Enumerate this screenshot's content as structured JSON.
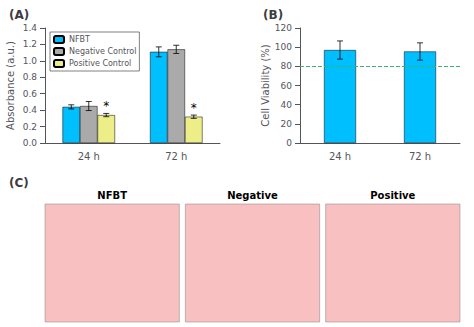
{
  "chart_data": [
    {
      "type": "bar",
      "title": "(A)",
      "categories": [
        "24 h",
        "72 h"
      ],
      "series": [
        {
          "name": "NFBT",
          "color": "#00BFFF",
          "values": [
            0.44,
            1.11
          ],
          "errors": [
            0.025,
            0.06
          ]
        },
        {
          "name": "Negative Control",
          "color": "#AAAAAA",
          "values": [
            0.45,
            1.14
          ],
          "errors": [
            0.055,
            0.05
          ]
        },
        {
          "name": "Positive Control",
          "color": "#EEEE88",
          "values": [
            0.34,
            0.32
          ],
          "errors": [
            0.02,
            0.02
          ],
          "annotations": [
            "*",
            "*"
          ]
        }
      ],
      "ylabel": "Absorbance (a.u.)",
      "ylim": [
        0,
        1.4
      ],
      "yticks": [
        {
          "value": 0,
          "label": "0.0"
        },
        0.2,
        0.4,
        0.6,
        0.8,
        {
          "value": 1,
          "label": "1.0"
        },
        1.2,
        1.4
      ],
      "legend": "upper left",
      "grid": false
    },
    {
      "type": "bar",
      "title": "(B)",
      "categories": [
        "24 h",
        "72 h"
      ],
      "values": [
        97.0,
        95.5
      ],
      "errors": [
        9.5,
        9.0
      ],
      "color": "#00BFFF",
      "ylabel": "Cell Viability (%)",
      "ylim": [
        0,
        120
      ],
      "yticks": [
        0,
        20,
        40,
        60,
        80,
        100,
        120
      ],
      "reference_line": {
        "value": 80,
        "color": "#3CB371",
        "line_style": "dashed"
      },
      "grid": false
    },
    {
      "type": "image",
      "title": "(C)",
      "categories": [
        "NFBT",
        "Negative",
        "Positive"
      ],
      "color": "#F8C0C0"
    }
  ]
}
